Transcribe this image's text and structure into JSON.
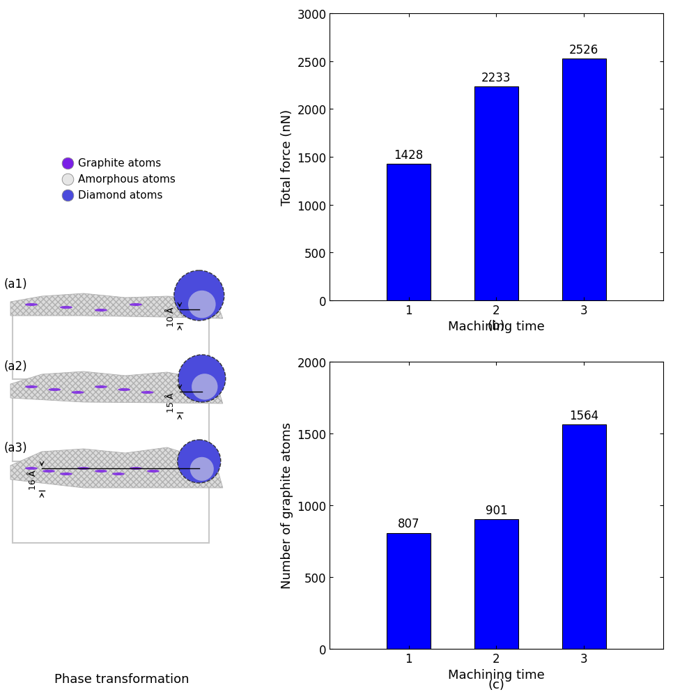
{
  "chart_data": [
    {
      "type": "bar",
      "subtitle": "(b)",
      "x_label": "Machining time",
      "y_label": "Total force (nN)",
      "categories": [
        "1",
        "2",
        "3"
      ],
      "values": [
        1428,
        2233,
        2526
      ],
      "color": "#0000ff",
      "ylim": [
        0,
        3000
      ],
      "yticks": [
        0,
        500,
        1000,
        1500,
        2000,
        2500,
        3000
      ],
      "data_labels": true
    },
    {
      "type": "bar",
      "subtitle": "(c)",
      "x_label": "Machining time",
      "y_label": "Number of graphite atoms",
      "categories": [
        "1",
        "2",
        "3"
      ],
      "values": [
        807,
        901,
        1564
      ],
      "color": "#0000ff",
      "ylim": [
        0,
        2000
      ],
      "yticks": [
        0,
        500,
        1000,
        1500,
        2000
      ],
      "data_labels": true
    }
  ],
  "atom_legend": [
    {
      "name": "Graphite atoms",
      "color": "#7a1fe6"
    },
    {
      "name": "Amorphous atoms",
      "color": "#e6e6e6"
    },
    {
      "name": "Diamond atoms",
      "color": "#4b4bdc"
    }
  ],
  "snapshots": [
    {
      "label": "(a1)",
      "depth_label": "10 Å"
    },
    {
      "label": "(a2)",
      "depth_label": "15 Å"
    },
    {
      "label": "(a3)",
      "depth_label": "16 Å"
    }
  ],
  "caption": "Phase transformation"
}
